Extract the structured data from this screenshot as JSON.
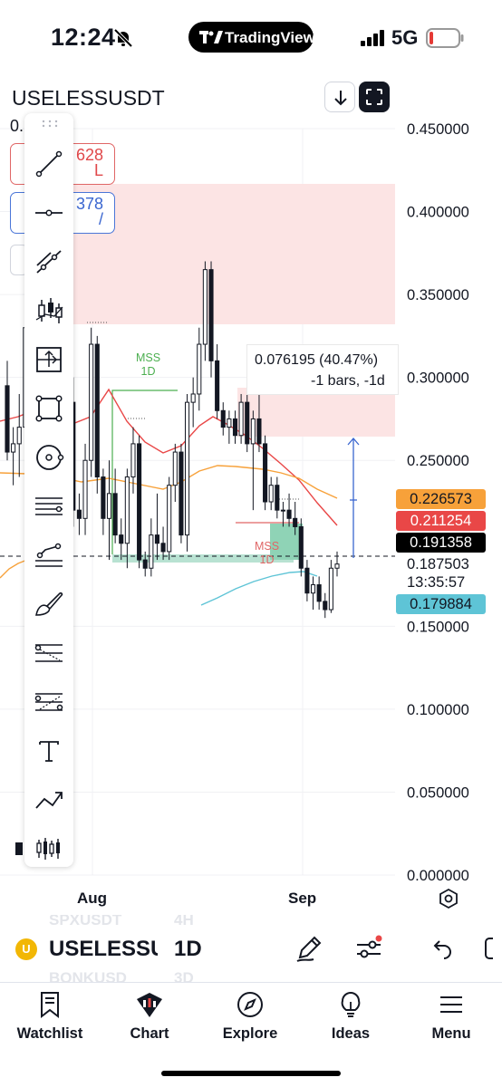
{
  "status_bar": {
    "time": "12:24",
    "network": "5G",
    "app_badge": "TradingView"
  },
  "header": {
    "symbol": "USELESSUSDT",
    "price_fragment": "0.  ::  03",
    "sell_fragment": "628",
    "sell_sub": "L",
    "buy_fragment": "378",
    "buy_sub": "/"
  },
  "chart_data": {
    "type": "candlestick",
    "symbol": "USELESSUSDT",
    "timeframe": "1D",
    "y_axis": {
      "ticks": [
        "0.450000",
        "0.400000",
        "0.350000",
        "0.300000",
        "0.250000",
        "0.150000",
        "0.100000",
        "0.050000",
        "0.000000"
      ],
      "range": [
        0,
        0.45
      ]
    },
    "x_axis": {
      "ticks": [
        "Aug",
        "Sep"
      ]
    },
    "price_tags": [
      {
        "value": "0.226573",
        "color": "#f7a13a"
      },
      {
        "value": "0.211254",
        "color": "#e94747"
      },
      {
        "value": "0.191358",
        "color": "#000000"
      },
      {
        "value": "0.179884",
        "color": "#5ec4d6"
      }
    ],
    "last_price": "0.187503",
    "countdown": "13:35:57",
    "measurement": {
      "line1": "0.076195 (40.47%)",
      "line2": "-1 bars, -1d"
    },
    "annotations": [
      {
        "text": "MSS",
        "sub": "1D",
        "color": "#4caf50"
      },
      {
        "text": "MSS",
        "sub": "1D",
        "color": "#e06666"
      }
    ],
    "ohlc": [
      [
        0.295,
        0.31,
        0.25,
        0.255
      ],
      [
        0.255,
        0.27,
        0.235,
        0.26
      ],
      [
        0.26,
        0.29,
        0.24,
        0.27
      ],
      [
        0.27,
        0.35,
        0.26,
        0.33
      ],
      [
        0.33,
        0.345,
        0.3,
        0.31
      ],
      [
        0.31,
        0.34,
        0.29,
        0.325
      ],
      [
        0.325,
        0.33,
        0.22,
        0.24
      ],
      [
        0.24,
        0.25,
        0.215,
        0.225
      ],
      [
        0.225,
        0.24,
        0.2,
        0.22
      ],
      [
        0.22,
        0.245,
        0.205,
        0.235
      ],
      [
        0.235,
        0.29,
        0.22,
        0.285
      ],
      [
        0.285,
        0.3,
        0.21,
        0.22
      ],
      [
        0.22,
        0.23,
        0.205,
        0.215
      ],
      [
        0.215,
        0.26,
        0.205,
        0.25
      ],
      [
        0.25,
        0.33,
        0.24,
        0.32
      ],
      [
        0.32,
        0.325,
        0.23,
        0.24
      ],
      [
        0.24,
        0.245,
        0.205,
        0.215
      ],
      [
        0.215,
        0.25,
        0.19,
        0.23
      ],
      [
        0.23,
        0.245,
        0.2,
        0.205
      ],
      [
        0.205,
        0.215,
        0.19,
        0.2
      ],
      [
        0.2,
        0.245,
        0.185,
        0.24
      ],
      [
        0.24,
        0.27,
        0.23,
        0.26
      ],
      [
        0.26,
        0.265,
        0.185,
        0.19
      ],
      [
        0.19,
        0.195,
        0.18,
        0.185
      ],
      [
        0.185,
        0.215,
        0.18,
        0.205
      ],
      [
        0.205,
        0.23,
        0.19,
        0.2
      ],
      [
        0.2,
        0.21,
        0.19,
        0.195
      ],
      [
        0.195,
        0.24,
        0.19,
        0.235
      ],
      [
        0.235,
        0.26,
        0.225,
        0.255
      ],
      [
        0.255,
        0.26,
        0.2,
        0.205
      ],
      [
        0.205,
        0.29,
        0.195,
        0.285
      ],
      [
        0.285,
        0.3,
        0.27,
        0.29
      ],
      [
        0.29,
        0.33,
        0.28,
        0.32
      ],
      [
        0.32,
        0.37,
        0.31,
        0.365
      ],
      [
        0.365,
        0.37,
        0.3,
        0.31
      ],
      [
        0.31,
        0.32,
        0.275,
        0.28
      ],
      [
        0.28,
        0.285,
        0.265,
        0.27
      ],
      [
        0.27,
        0.28,
        0.26,
        0.275
      ],
      [
        0.275,
        0.28,
        0.26,
        0.265
      ],
      [
        0.265,
        0.29,
        0.26,
        0.285
      ],
      [
        0.285,
        0.29,
        0.255,
        0.26
      ],
      [
        0.26,
        0.28,
        0.22,
        0.275
      ],
      [
        0.275,
        0.29,
        0.255,
        0.26
      ],
      [
        0.26,
        0.265,
        0.22,
        0.225
      ],
      [
        0.225,
        0.24,
        0.22,
        0.235
      ],
      [
        0.235,
        0.24,
        0.215,
        0.22
      ],
      [
        0.22,
        0.225,
        0.21,
        0.22
      ],
      [
        0.22,
        0.23,
        0.21,
        0.215
      ],
      [
        0.215,
        0.225,
        0.205,
        0.21
      ],
      [
        0.21,
        0.215,
        0.18,
        0.185
      ],
      [
        0.185,
        0.19,
        0.165,
        0.17
      ],
      [
        0.17,
        0.18,
        0.16,
        0.175
      ],
      [
        0.175,
        0.18,
        0.16,
        0.165
      ],
      [
        0.165,
        0.17,
        0.155,
        0.16
      ],
      [
        0.16,
        0.19,
        0.158,
        0.185
      ],
      [
        0.185,
        0.195,
        0.18,
        0.1875
      ]
    ]
  },
  "toolbar": {
    "tools": [
      "trend-line-tool",
      "horizontal-line-tool",
      "ray-tool",
      "long-position-tool",
      "move-tool",
      "rectangle-tool",
      "circle-tool",
      "parallel-channel-tool",
      "pitchfork-tool",
      "brush-tool",
      "fib-retracement-tool",
      "fib-extension-tool",
      "text-tool",
      "path-tool",
      "pattern-tool"
    ]
  },
  "symbol_bar": {
    "ghost_top": "SPXUSDT",
    "ghost_top_tf": "4H",
    "ghost_bottom": "BONKUSD",
    "ghost_bottom_tf": "3D",
    "symbol": "USELESSU",
    "timeframe": "1D",
    "coin_letter": "U"
  },
  "nav": {
    "watchlist": "Watchlist",
    "chart": "Chart",
    "explore": "Explore",
    "ideas": "Ideas",
    "menu": "Menu"
  }
}
